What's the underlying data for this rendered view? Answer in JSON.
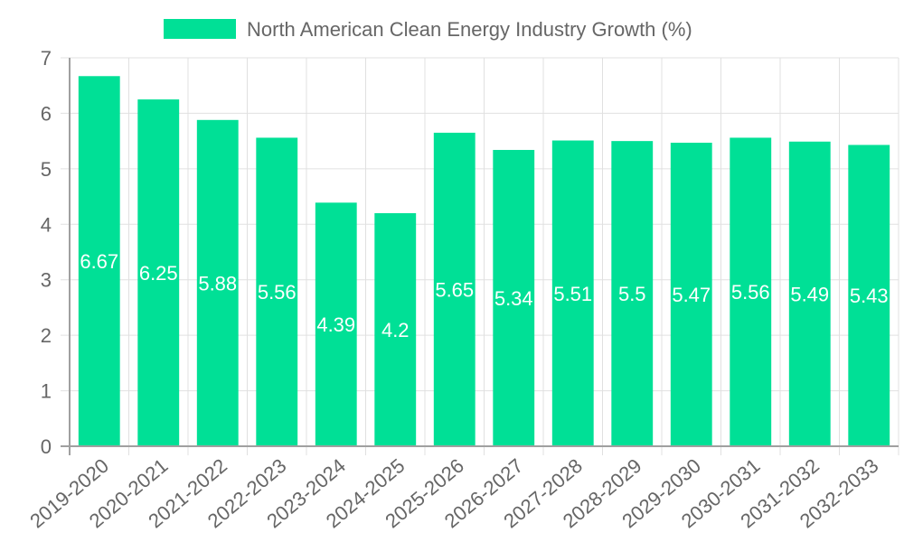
{
  "chart_data": {
    "type": "bar",
    "title": "",
    "xlabel": "",
    "ylabel": "",
    "legend_position": "top",
    "grid": true,
    "ylim": [
      0,
      7
    ],
    "yticks": [
      0,
      1,
      2,
      3,
      4,
      5,
      6,
      7
    ],
    "categories": [
      "2019-2020",
      "2020-2021",
      "2021-2022",
      "2022-2023",
      "2023-2024",
      "2024-2025",
      "2025-2026",
      "2026-2027",
      "2027-2028",
      "2028-2029",
      "2029-2030",
      "2030-2031",
      "2031-2032",
      "2032-2033"
    ],
    "series": [
      {
        "name": "North American Clean Energy Industry Growth (%)",
        "color": "#00e096",
        "values": [
          6.67,
          6.25,
          5.88,
          5.56,
          4.39,
          4.2,
          5.65,
          5.34,
          5.51,
          5.5,
          5.47,
          5.56,
          5.49,
          5.43
        ]
      }
    ],
    "data_labels": [
      "6.67",
      "6.25",
      "5.88",
      "5.56",
      "4.39",
      "4.2",
      "5.65",
      "5.34",
      "5.51",
      "5.5",
      "5.47",
      "5.56",
      "5.49",
      "5.43"
    ],
    "colors": {
      "grid": "#e0e0e0",
      "axis": "#a0a0a0",
      "text": "#666666",
      "data_label": "#ffffff"
    }
  }
}
